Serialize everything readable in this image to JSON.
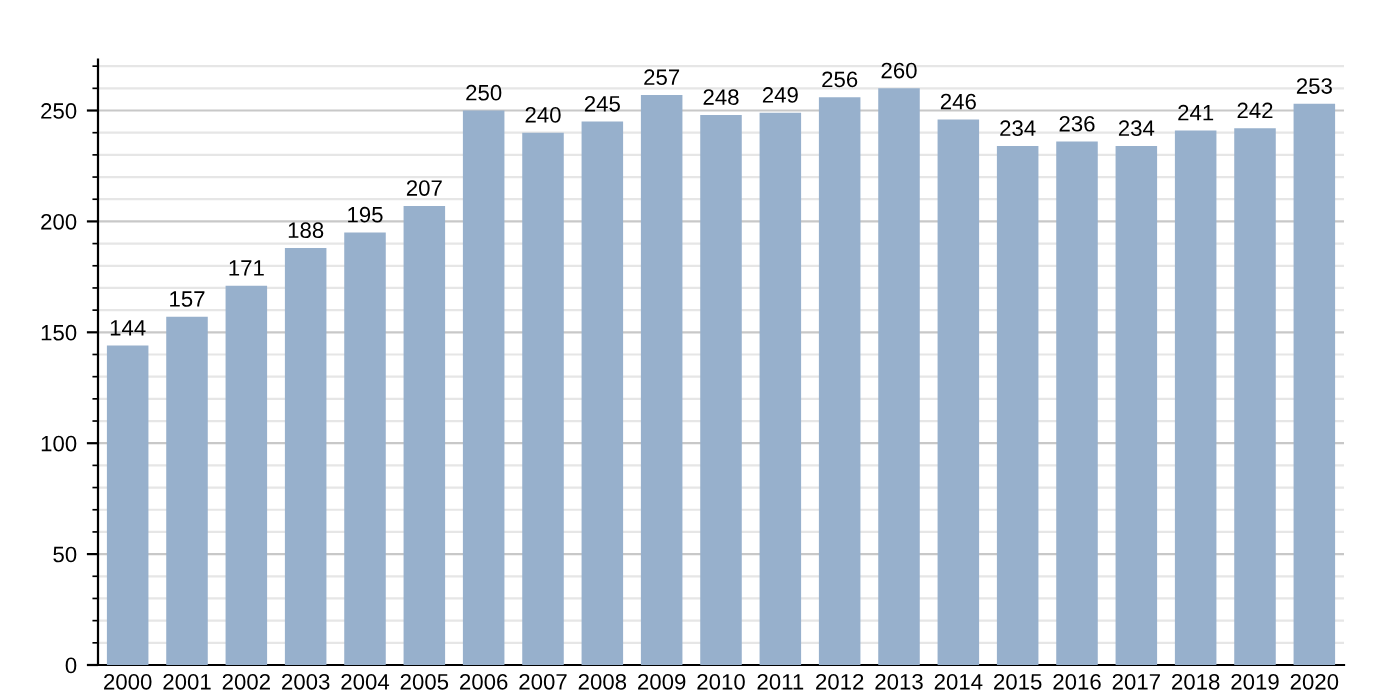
{
  "chart_data": {
    "type": "bar",
    "categories": [
      "2000",
      "2001",
      "2002",
      "2003",
      "2004",
      "2005",
      "2006",
      "2007",
      "2008",
      "2009",
      "2010",
      "2011",
      "2012",
      "2013",
      "2014",
      "2015",
      "2016",
      "2017",
      "2018",
      "2019",
      "2020"
    ],
    "values": [
      144,
      157,
      171,
      188,
      195,
      207,
      250,
      240,
      245,
      257,
      248,
      249,
      256,
      260,
      246,
      234,
      236,
      234,
      241,
      242,
      253
    ],
    "color": "#97b0cc",
    "ylim": [
      0,
      273
    ],
    "yticks": [
      0,
      {
        "value": 10,
        "label": null
      },
      {
        "value": 20,
        "label": null
      },
      {
        "value": 30,
        "label": null
      },
      {
        "value": 40,
        "label": null
      },
      50,
      {
        "value": 60,
        "label": null
      },
      {
        "value": 70,
        "label": null
      },
      {
        "value": 80,
        "label": null
      },
      {
        "value": 90,
        "label": null
      },
      100,
      {
        "value": 110,
        "label": null
      },
      {
        "value": 120,
        "label": null
      },
      {
        "value": 130,
        "label": null
      },
      {
        "value": 140,
        "label": null
      },
      150,
      {
        "value": 160,
        "label": null
      },
      {
        "value": 170,
        "label": null
      },
      {
        "value": 180,
        "label": null
      },
      {
        "value": 190,
        "label": null
      },
      200,
      {
        "value": 210,
        "label": null
      },
      {
        "value": 220,
        "label": null
      },
      {
        "value": 230,
        "label": null
      },
      {
        "value": 240,
        "label": null
      },
      250,
      {
        "value": 260,
        "label": null
      },
      {
        "value": 270,
        "label": null
      }
    ],
    "grid": "y",
    "data_labels": true
  }
}
